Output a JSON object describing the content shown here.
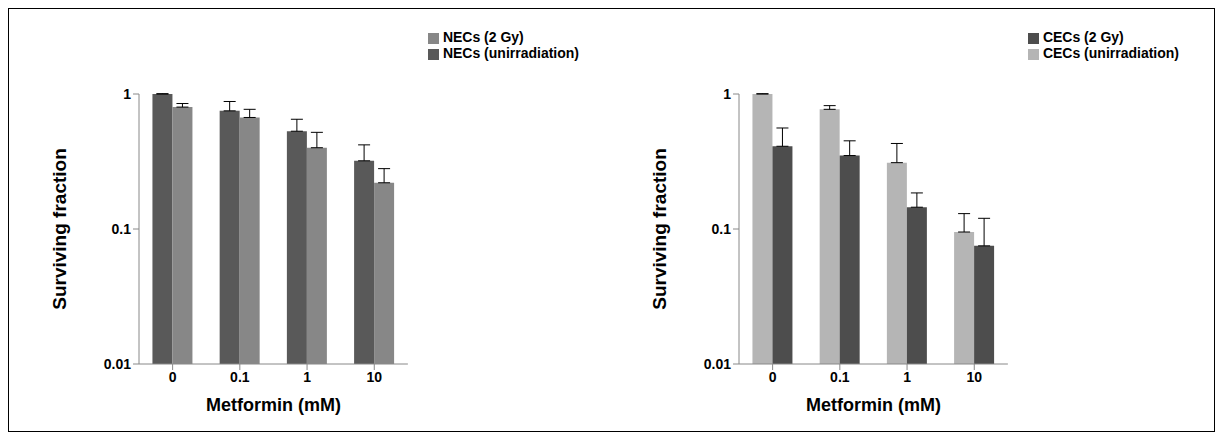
{
  "chart_data": [
    {
      "type": "bar",
      "x_label": "Metformin (mM)",
      "y_label": "Surviving fraction",
      "categories": [
        "0",
        "0.1",
        "1",
        "10"
      ],
      "series": [
        {
          "name": "NECs (unirradiation)",
          "color": "#595959",
          "values": [
            1,
            0.75,
            0.53,
            0.32
          ],
          "errors": [
            0.005,
            0.13,
            0.12,
            0.1
          ]
        },
        {
          "name": "NECs (2 Gy)",
          "color": "#878787",
          "values": [
            0.8,
            0.67,
            0.4,
            0.22
          ],
          "errors": [
            0.05,
            0.1,
            0.12,
            0.06
          ]
        }
      ],
      "log": "y",
      "ylim": [
        0.01,
        1
      ],
      "yticks": [
        0.01,
        0.1,
        1
      ],
      "grid": false,
      "legend": "upper right"
    },
    {
      "type": "bar",
      "x_label": "Metformin (mM)",
      "y_label": "Surviving fraction",
      "categories": [
        "0",
        "0.1",
        "1",
        "10"
      ],
      "series": [
        {
          "name": "CECs (unirradiation)",
          "color": "#b5b5b5",
          "values": [
            1,
            0.77,
            0.31,
            0.095
          ],
          "errors": [
            0.005,
            0.05,
            0.12,
            0.035
          ]
        },
        {
          "name": "CECs (2 Gy)",
          "color": "#4d4d4d",
          "values": [
            0.41,
            0.35,
            0.145,
            0.075
          ],
          "errors": [
            0.15,
            0.1,
            0.04,
            0.045
          ]
        }
      ],
      "log": "y",
      "ylim": [
        0.01,
        1
      ],
      "yticks": [
        0.01,
        0.1,
        1
      ],
      "grid": false,
      "legend": "upper right"
    }
  ]
}
